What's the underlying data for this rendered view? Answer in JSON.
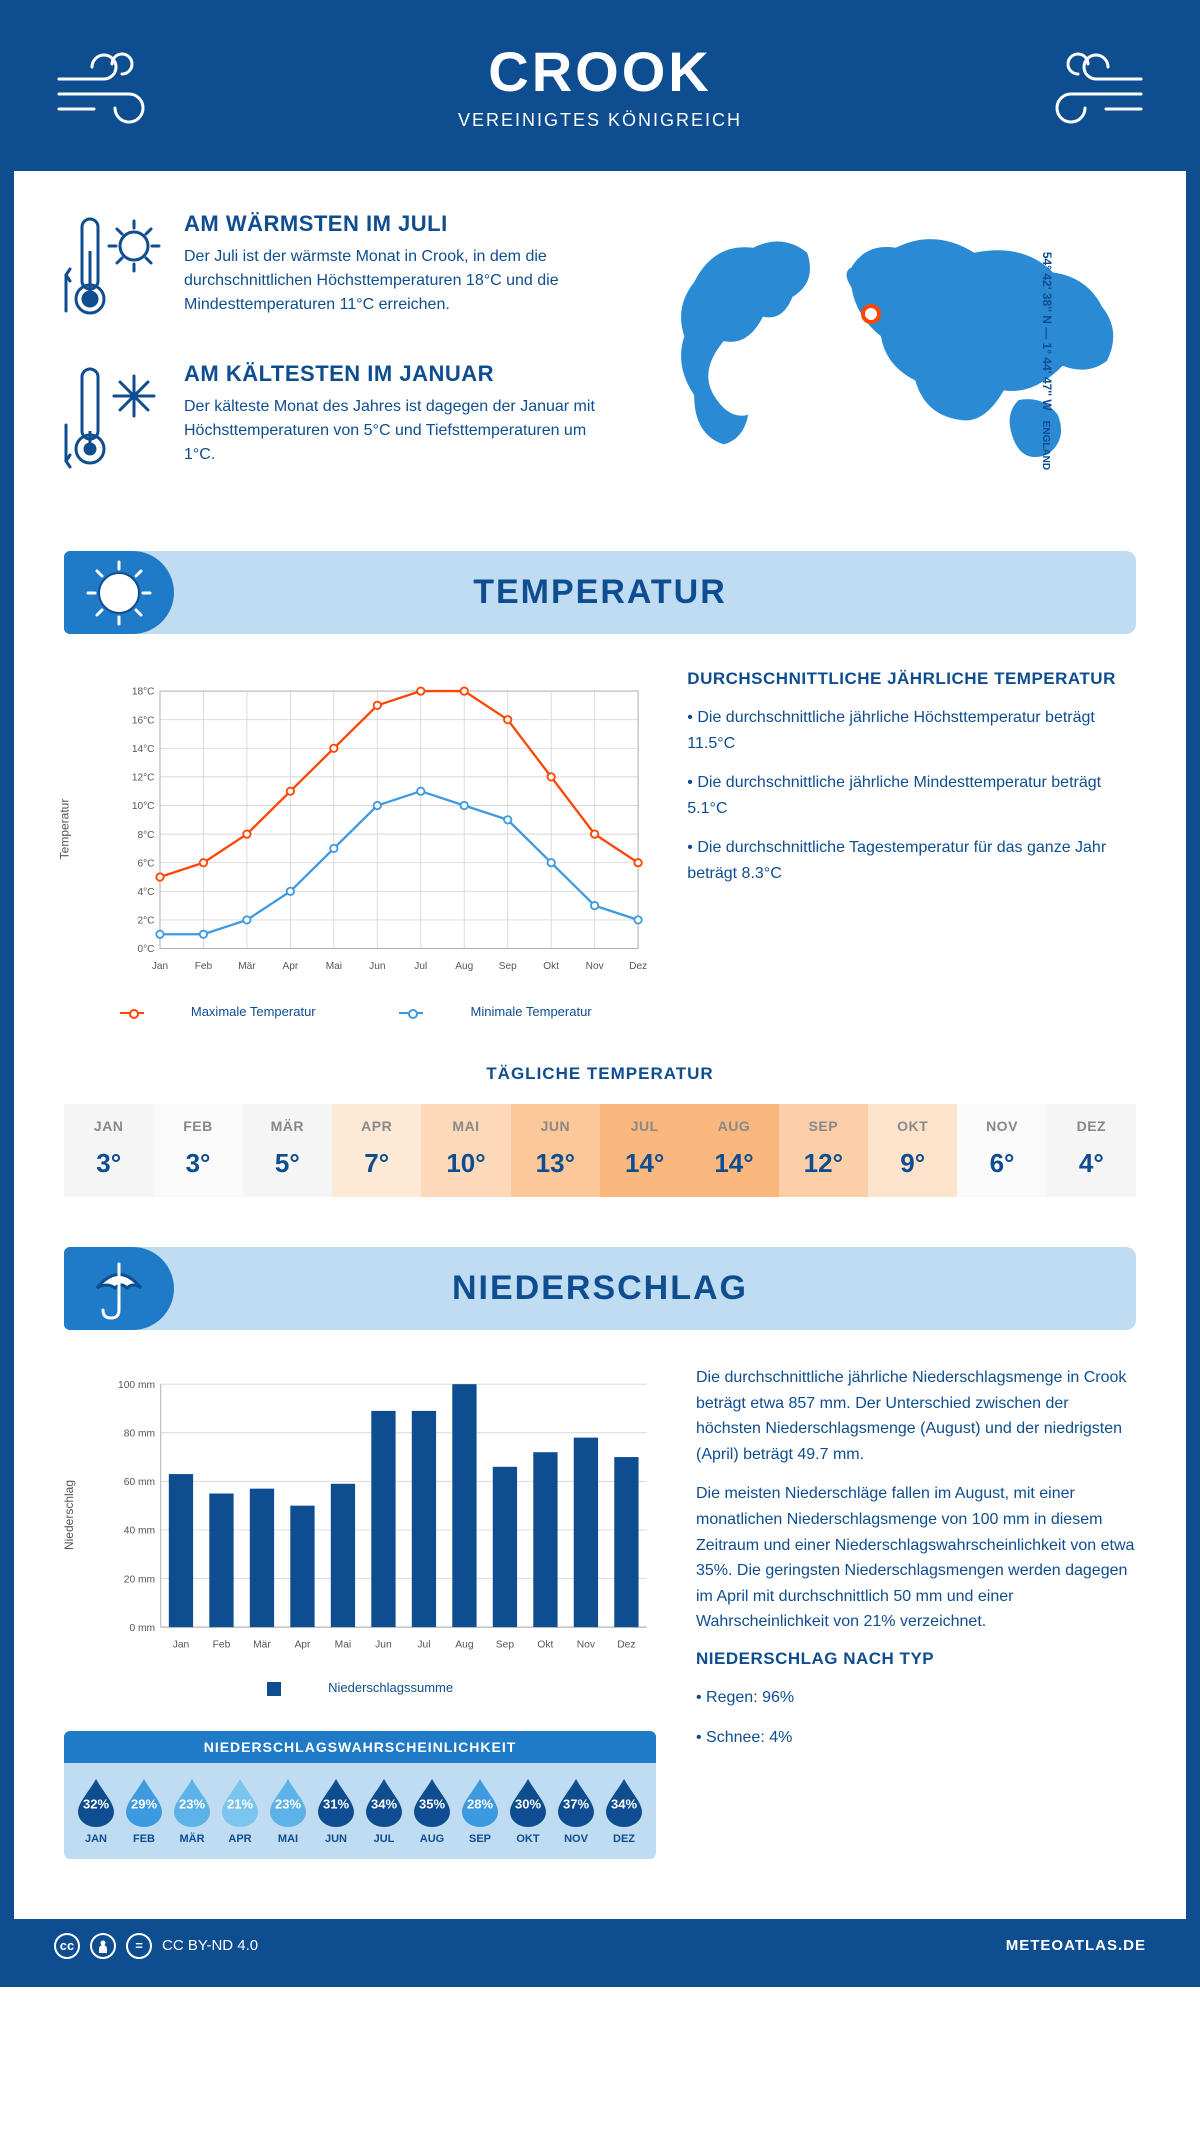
{
  "header": {
    "city": "CROOK",
    "country": "VEREINIGTES KÖNIGREICH"
  },
  "coords": "54° 42' 38'' N — 1° 44' 47'' W",
  "region": "ENGLAND",
  "brand_color": "#0e4d8f",
  "accent_color": "#1f7bc8",
  "light_color": "#bfdcf2",
  "warm_color": "#ff4500",
  "facts": {
    "warm": {
      "title": "AM WÄRMSTEN IM JULI",
      "text": "Der Juli ist der wärmste Monat in Crook, in dem die durchschnittlichen Höchsttemperaturen 18°C und die Mindesttemperaturen 11°C erreichen."
    },
    "cold": {
      "title": "AM KÄLTESTEN IM JANUAR",
      "text": "Der kälteste Monat des Jahres ist dagegen der Januar mit Höchsttemperaturen von 5°C und Tiefsttemperaturen um 1°C."
    }
  },
  "map_marker": {
    "left_pct": 44,
    "top_pct": 31
  },
  "temperature": {
    "section_title": "TEMPERATUR",
    "chart": {
      "months": [
        "Jan",
        "Feb",
        "Mär",
        "Apr",
        "Mai",
        "Jun",
        "Jul",
        "Aug",
        "Sep",
        "Okt",
        "Nov",
        "Dez"
      ],
      "max_values": [
        5,
        6,
        8,
        11,
        14,
        17,
        18,
        18,
        16,
        12,
        8,
        6
      ],
      "min_values": [
        1,
        1,
        2,
        4,
        7,
        10,
        11,
        10,
        9,
        6,
        3,
        2
      ],
      "y_ticks": [
        "0°C",
        "2°C",
        "4°C",
        "6°C",
        "8°C",
        "10°C",
        "12°C",
        "14°C",
        "16°C",
        "18°C"
      ],
      "ylim": [
        0,
        18
      ],
      "max_color": "#ff4500",
      "min_color": "#3d9ae0",
      "grid_color": "#d8d8d8",
      "y_label": "Temperatur",
      "legend_max": "Maximale Temperatur",
      "legend_min": "Minimale Temperatur"
    },
    "summary": {
      "title": "DURCHSCHNITTLICHE JÄHRLICHE TEMPERATUR",
      "bullets": [
        "Die durchschnittliche jährliche Höchsttemperatur beträgt 11.5°C",
        "Die durchschnittliche jährliche Mindesttemperatur beträgt 5.1°C",
        "Die durchschnittliche Tagestemperatur für das ganze Jahr beträgt 8.3°C"
      ]
    },
    "daily_title": "TÄGLICHE TEMPERATUR",
    "daily": {
      "months": [
        "JAN",
        "FEB",
        "MÄR",
        "APR",
        "MAI",
        "JUN",
        "JUL",
        "AUG",
        "SEP",
        "OKT",
        "NOV",
        "DEZ"
      ],
      "values": [
        "3°",
        "3°",
        "5°",
        "7°",
        "10°",
        "13°",
        "14°",
        "14°",
        "12°",
        "9°",
        "6°",
        "4°"
      ],
      "bg_colors": [
        "#f5f5f5",
        "#fafafa",
        "#f5f5f5",
        "#fee8d6",
        "#fdd8b9",
        "#fcc799",
        "#fbb87e",
        "#fbb87e",
        "#fdcfa8",
        "#fee3cc",
        "#fafafa",
        "#f5f5f5"
      ]
    }
  },
  "precipitation": {
    "section_title": "NIEDERSCHLAG",
    "chart": {
      "months": [
        "Jan",
        "Feb",
        "Mär",
        "Apr",
        "Mai",
        "Jun",
        "Jul",
        "Aug",
        "Sep",
        "Okt",
        "Nov",
        "Dez"
      ],
      "values": [
        63,
        55,
        57,
        50,
        59,
        89,
        89,
        100,
        66,
        72,
        78,
        70
      ],
      "y_ticks": [
        "0 mm",
        "20 mm",
        "40 mm",
        "60 mm",
        "80 mm",
        "100 mm"
      ],
      "ylim": [
        0,
        100
      ],
      "bar_color": "#0e4d8f",
      "grid_color": "#d8d8d8",
      "y_label": "Niederschlag",
      "legend": "Niederschlagssumme"
    },
    "text_p1": "Die durchschnittliche jährliche Niederschlagsmenge in Crook beträgt etwa 857 mm. Der Unterschied zwischen der höchsten Niederschlagsmenge (August) und der niedrigsten (April) beträgt 49.7 mm.",
    "text_p2": "Die meisten Niederschläge fallen im August, mit einer monatlichen Niederschlagsmenge von 100 mm in diesem Zeitraum und einer Niederschlagswahrscheinlichkeit von etwa 35%. Die geringsten Niederschlagsmengen werden dagegen im April mit durchschnittlich 50 mm und einer Wahrscheinlichkeit von 21% verzeichnet.",
    "type_title": "NIEDERSCHLAG NACH TYP",
    "type_bullets": [
      "Regen: 96%",
      "Schnee: 4%"
    ],
    "prob": {
      "title": "NIEDERSCHLAGSWAHRSCHEINLICHKEIT",
      "months": [
        "JAN",
        "FEB",
        "MÄR",
        "APR",
        "MAI",
        "JUN",
        "JUL",
        "AUG",
        "SEP",
        "OKT",
        "NOV",
        "DEZ"
      ],
      "values": [
        "32%",
        "29%",
        "23%",
        "21%",
        "23%",
        "31%",
        "34%",
        "35%",
        "28%",
        "30%",
        "37%",
        "34%"
      ],
      "colors": [
        "#0e4d8f",
        "#3d9ae0",
        "#5db3e8",
        "#7cc5ee",
        "#5db3e8",
        "#0e4d8f",
        "#0e4d8f",
        "#0e4d8f",
        "#3d9ae0",
        "#0e4d8f",
        "#0e4d8f",
        "#0e4d8f"
      ]
    }
  },
  "footer": {
    "license": "CC BY-ND 4.0",
    "site": "METEOATLAS.DE"
  }
}
